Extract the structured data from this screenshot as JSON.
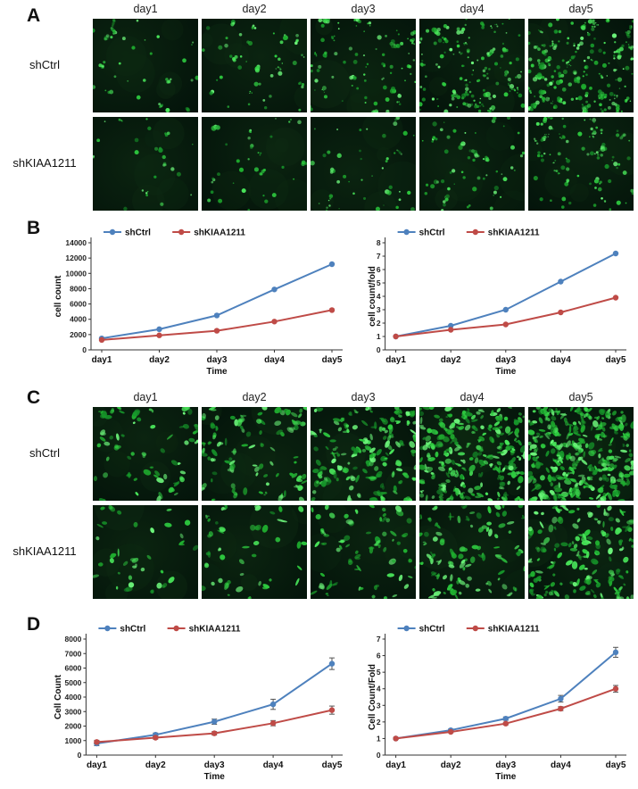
{
  "colors": {
    "shCtrl": "#4e81bd",
    "shKIAA1211": "#bf4b47"
  },
  "figure": {
    "panelA": {
      "label": "A",
      "style": "dots",
      "col_headers": [
        "day1",
        "day2",
        "day3",
        "day4",
        "day5"
      ],
      "rows": [
        {
          "label": "shCtrl",
          "densities": [
            30,
            45,
            80,
            130,
            180
          ]
        },
        {
          "label": "shKIAA1211",
          "densities": [
            22,
            30,
            42,
            60,
            85
          ]
        }
      ]
    },
    "panelB": {
      "label": "B"
    },
    "panelC": {
      "label": "C",
      "style": "blob",
      "col_headers": [
        "day1",
        "day2",
        "day3",
        "day4",
        "day5"
      ],
      "rows": [
        {
          "label": "shCtrl",
          "densities": [
            60,
            90,
            150,
            230,
            320
          ]
        },
        {
          "label": "shKIAA1211",
          "densities": [
            35,
            45,
            65,
            95,
            140
          ]
        }
      ]
    },
    "panelD": {
      "label": "D"
    }
  },
  "chart_data": [
    {
      "type": "line",
      "panel": "B",
      "position": "left",
      "title": "",
      "xlabel": "Time",
      "ylabel": "cell count",
      "ylim": [
        0,
        14000
      ],
      "ytick_step": 2000,
      "legend_position": "top",
      "grid": false,
      "categories": [
        "day1",
        "day2",
        "day3",
        "day4",
        "day5"
      ],
      "series": [
        {
          "name": "shCtrl",
          "values": [
            1500,
            2700,
            4500,
            7900,
            11200
          ]
        },
        {
          "name": "shKIAA1211",
          "values": [
            1300,
            1900,
            2500,
            3700,
            5200
          ]
        }
      ]
    },
    {
      "type": "line",
      "panel": "B",
      "position": "right",
      "title": "",
      "xlabel": "Time",
      "ylabel": "cell count/fold",
      "ylim": [
        0,
        8
      ],
      "ytick_step": 1,
      "legend_position": "top",
      "grid": false,
      "categories": [
        "day1",
        "day2",
        "day3",
        "day4",
        "day5"
      ],
      "series": [
        {
          "name": "shCtrl",
          "values": [
            1,
            1.8,
            3,
            5.1,
            7.2
          ]
        },
        {
          "name": "shKIAA1211",
          "values": [
            1,
            1.5,
            1.9,
            2.8,
            3.9
          ]
        }
      ]
    },
    {
      "type": "line",
      "panel": "D",
      "position": "left",
      "title": "",
      "xlabel": "Time",
      "ylabel": "Cell Count",
      "ylim": [
        0,
        8000
      ],
      "ytick_step": 1000,
      "legend_position": "top",
      "grid": false,
      "categories": [
        "day1",
        "day2",
        "day3",
        "day4",
        "day5"
      ],
      "series": [
        {
          "name": "shCtrl",
          "values": [
            800,
            1400,
            2300,
            3500,
            6300
          ],
          "errors": [
            150,
            120,
            180,
            350,
            400
          ]
        },
        {
          "name": "shKIAA1211",
          "values": [
            900,
            1200,
            1500,
            2200,
            3100
          ],
          "errors": [
            120,
            100,
            120,
            180,
            280
          ]
        }
      ]
    },
    {
      "type": "line",
      "panel": "D",
      "position": "right",
      "title": "",
      "xlabel": "Time",
      "ylabel": "Cell Count/Fold",
      "ylim": [
        0,
        7
      ],
      "ytick_step": 1,
      "legend_position": "top",
      "grid": false,
      "categories": [
        "day1",
        "day2",
        "day3",
        "day4",
        "day5"
      ],
      "series": [
        {
          "name": "shCtrl",
          "values": [
            1,
            1.5,
            2.2,
            3.4,
            6.2
          ],
          "errors": [
            0.05,
            0.07,
            0.1,
            0.2,
            0.3
          ]
        },
        {
          "name": "shKIAA1211",
          "values": [
            1,
            1.4,
            1.9,
            2.8,
            4
          ],
          "errors": [
            0.05,
            0.06,
            0.08,
            0.12,
            0.2
          ]
        }
      ]
    }
  ]
}
